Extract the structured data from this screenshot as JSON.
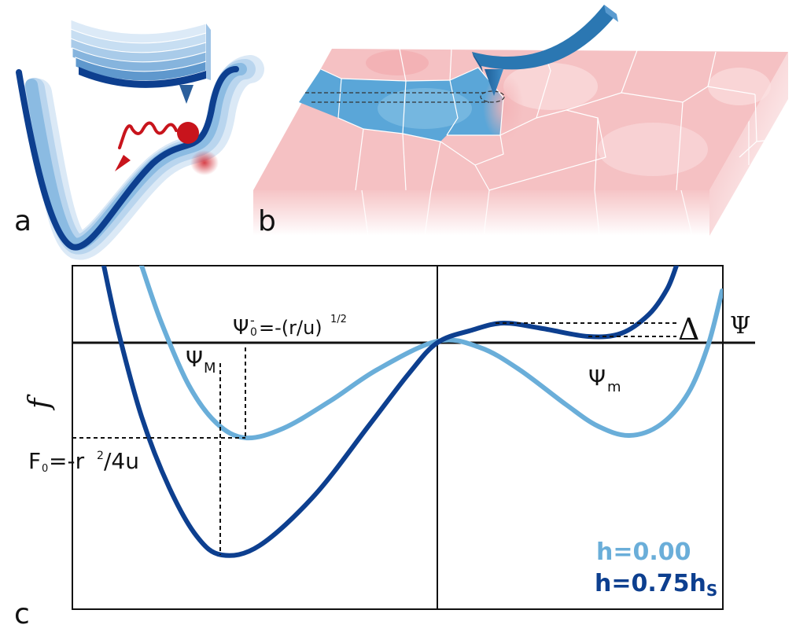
{
  "panels": {
    "a": "a",
    "b": "b",
    "c": "c"
  },
  "colors": {
    "dark_blue": "#0d3f8f",
    "light_blue": "#6aaed9",
    "grain_pink": "#f3b3b6",
    "domain_blue": "#5aa6d8",
    "cantilever_blue": "#2b77b2",
    "particle_red": "#c8141c"
  },
  "graph": {
    "y_axis_label": "f",
    "x_axis_label": "Ψ",
    "psi_zero_label": "Ψ",
    "psi_zero_sub": "0",
    "psi_zero_sup": "-",
    "psi_zero_expr": "=-(r/u)",
    "psi_zero_exp": "1/2",
    "psi_M_main": "Ψ",
    "psi_M_sub": "M",
    "psi_m_main": "Ψ",
    "psi_m_sub": "m",
    "F0_main": "F",
    "F0_sub": "0",
    "F0_expr1": "=-r",
    "F0_sup": "2",
    "F0_expr2": "/4u",
    "delta_label": "Δ",
    "legend_light_value": "h=0.00",
    "legend_dark_main": "h=0.75h",
    "legend_dark_sub": "S"
  }
}
